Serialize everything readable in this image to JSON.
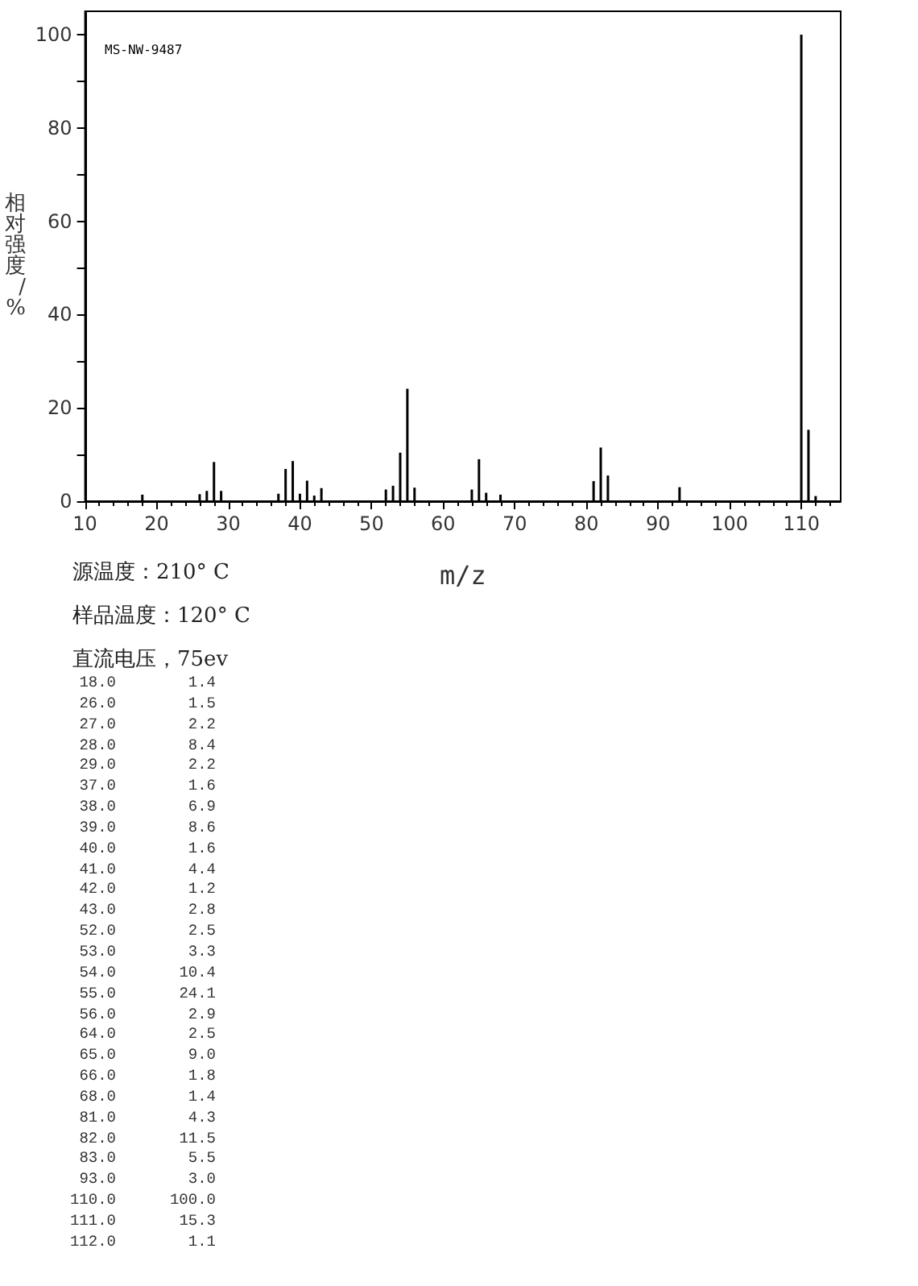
{
  "chart_data": {
    "type": "bar",
    "xlabel": "m/z",
    "ylabel": "相对强度/%",
    "x": [
      18,
      26,
      27,
      28,
      29,
      37,
      38,
      39,
      40,
      41,
      42,
      43,
      52,
      53,
      54,
      55,
      56,
      64,
      65,
      66,
      68,
      81,
      82,
      83,
      93,
      110,
      111,
      112
    ],
    "values": [
      1.4,
      1.5,
      2.2,
      8.4,
      2.2,
      1.6,
      6.9,
      8.6,
      1.6,
      4.4,
      1.2,
      2.8,
      2.5,
      3.3,
      10.4,
      24.1,
      2.9,
      2.5,
      9.0,
      1.8,
      1.4,
      4.3,
      11.5,
      5.5,
      3.0,
      100.0,
      15.3,
      1.1
    ],
    "color": "#000000",
    "xlim": [
      10,
      115.5
    ],
    "xticks": [
      10,
      20,
      30,
      40,
      50,
      60,
      70,
      80,
      90,
      100,
      110
    ],
    "ylim": [
      0,
      105
    ],
    "yticks": [
      0,
      {
        "value": 10,
        "label": null
      },
      20,
      {
        "value": 30,
        "label": null
      },
      40,
      {
        "value": 50,
        "label": null
      },
      60,
      {
        "value": 70,
        "label": null
      },
      80,
      {
        "value": 90,
        "label": null
      },
      100
    ],
    "grid": false,
    "annotations": [
      "MS-NW-9487",
      "源温度：210° C",
      "样品温度：120° C",
      "直流电压，75ev",
      "18.0",
      "1.4",
      "26.0",
      "1.5",
      "27.0",
      "2.2",
      "28.0",
      "8.4",
      "29.0",
      "2.2",
      "37.0",
      "1.6",
      "38.0",
      "6.9",
      "39.0",
      "8.6",
      "40.0",
      "1.6",
      "41.0",
      "4.4",
      "42.0",
      "1.2",
      "43.0",
      "2.8",
      "52.0",
      "2.5",
      "53.0",
      "3.3",
      "54.0",
      "10.4",
      "55.0",
      "24.1",
      "56.0",
      "2.9",
      "64.0",
      "2.5",
      "65.0",
      "9.0",
      "66.0",
      "1.8",
      "68.0",
      "1.4",
      "81.0",
      "4.3",
      "82.0",
      "11.5",
      "83.0",
      "5.5",
      "93.0",
      "3.0",
      "110.0",
      "100.0",
      "111.0",
      "15.3",
      "112.0",
      "1.1"
    ]
  }
}
